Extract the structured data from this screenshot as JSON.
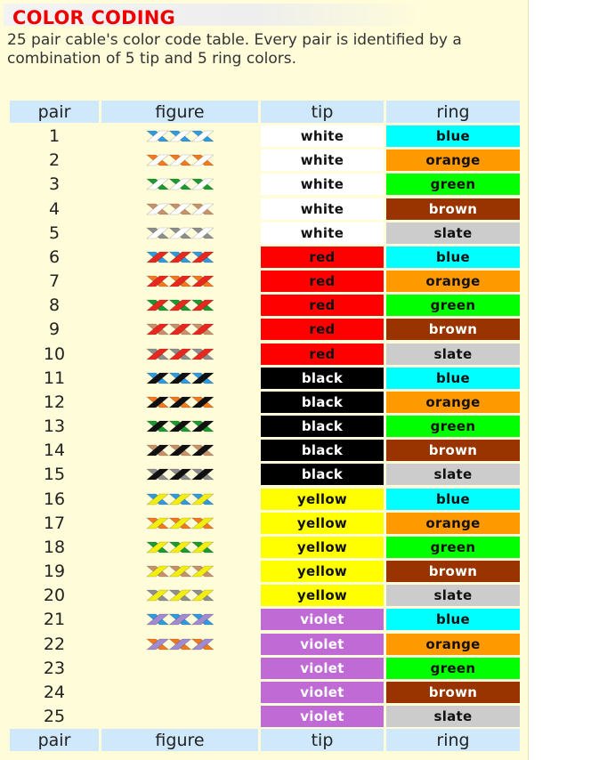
{
  "title": "COLOR CODING",
  "description": "25 pair cable's color code table. Every pair is identified by a combination of 5 tip and 5 ring colors.",
  "header": {
    "pair": "pair",
    "figure": "figure",
    "tip": "tip",
    "ring": "ring"
  },
  "footer": {
    "pair": "pair",
    "figure": "figure",
    "tip": "tip",
    "ring": "ring"
  },
  "colors": {
    "white": {
      "bg": "#ffffff",
      "fg": "#111111",
      "wire": "#ffffff"
    },
    "red": {
      "bg": "#ff0000",
      "fg": "#111111",
      "wire": "#e8281e"
    },
    "black": {
      "bg": "#000000",
      "fg": "#ffffff",
      "wire": "#111111"
    },
    "yellow": {
      "bg": "#ffff00",
      "fg": "#111111",
      "wire": "#f2ee12"
    },
    "violet": {
      "bg": "#c06ad6",
      "fg": "#ffffff",
      "wire": "#a08ad0"
    },
    "blue": {
      "bg": "#00ffff",
      "fg": "#111111",
      "wire": "#2f9ae0"
    },
    "orange": {
      "bg": "#ff9900",
      "fg": "#111111",
      "wire": "#f07a20"
    },
    "green": {
      "bg": "#00ff00",
      "fg": "#111111",
      "wire": "#1a9a30"
    },
    "brown": {
      "bg": "#993300",
      "fg": "#ffffff",
      "wire": "#c7916a"
    },
    "slate": {
      "bg": "#cccccc",
      "fg": "#111111",
      "wire": "#8e8e8e"
    }
  },
  "rows": [
    {
      "pair": "1",
      "tip": "white",
      "ring": "blue",
      "figure": true
    },
    {
      "pair": "2",
      "tip": "white",
      "ring": "orange",
      "figure": true
    },
    {
      "pair": "3",
      "tip": "white",
      "ring": "green",
      "figure": true
    },
    {
      "pair": "4",
      "tip": "white",
      "ring": "brown",
      "figure": true
    },
    {
      "pair": "5",
      "tip": "white",
      "ring": "slate",
      "figure": true
    },
    {
      "pair": "6",
      "tip": "red",
      "ring": "blue",
      "figure": true
    },
    {
      "pair": "7",
      "tip": "red",
      "ring": "orange",
      "figure": true
    },
    {
      "pair": "8",
      "tip": "red",
      "ring": "green",
      "figure": true
    },
    {
      "pair": "9",
      "tip": "red",
      "ring": "brown",
      "figure": true
    },
    {
      "pair": "10",
      "tip": "red",
      "ring": "slate",
      "figure": true
    },
    {
      "pair": "11",
      "tip": "black",
      "ring": "blue",
      "figure": true
    },
    {
      "pair": "12",
      "tip": "black",
      "ring": "orange",
      "figure": true
    },
    {
      "pair": "13",
      "tip": "black",
      "ring": "green",
      "figure": true
    },
    {
      "pair": "14",
      "tip": "black",
      "ring": "brown",
      "figure": true
    },
    {
      "pair": "15",
      "tip": "black",
      "ring": "slate",
      "figure": true
    },
    {
      "pair": "16",
      "tip": "yellow",
      "ring": "blue",
      "figure": true
    },
    {
      "pair": "17",
      "tip": "yellow",
      "ring": "orange",
      "figure": true
    },
    {
      "pair": "18",
      "tip": "yellow",
      "ring": "green",
      "figure": true
    },
    {
      "pair": "19",
      "tip": "yellow",
      "ring": "brown",
      "figure": true
    },
    {
      "pair": "20",
      "tip": "yellow",
      "ring": "slate",
      "figure": true
    },
    {
      "pair": "21",
      "tip": "violet",
      "ring": "blue",
      "figure": true
    },
    {
      "pair": "22",
      "tip": "violet",
      "ring": "orange",
      "figure": true
    },
    {
      "pair": "23",
      "tip": "violet",
      "ring": "green",
      "figure": false
    },
    {
      "pair": "24",
      "tip": "violet",
      "ring": "brown",
      "figure": false
    },
    {
      "pair": "25",
      "tip": "violet",
      "ring": "slate",
      "figure": false
    }
  ]
}
